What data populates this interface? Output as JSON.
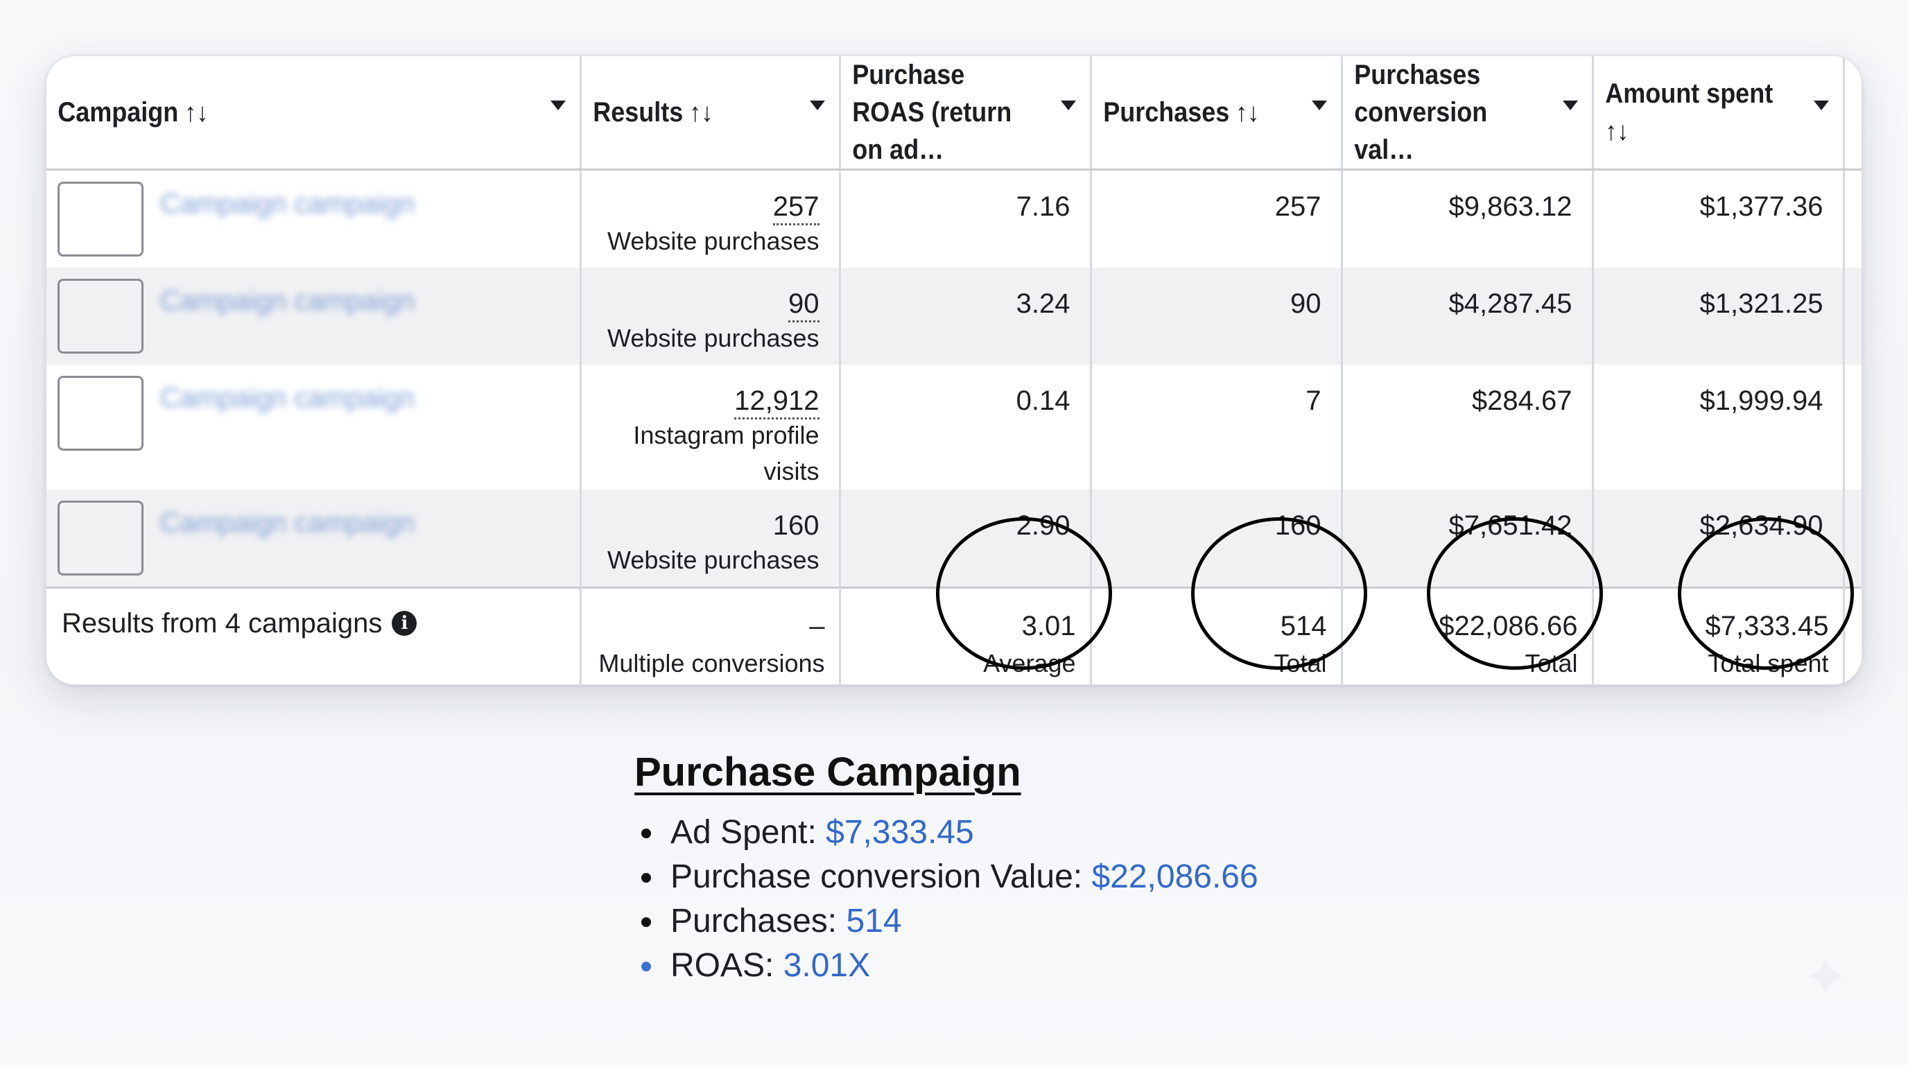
{
  "table": {
    "columns": [
      {
        "label": "Campaign",
        "sort": "↑↓"
      },
      {
        "label": "Results",
        "sort": "↑↓"
      },
      {
        "label": "Purchase ROAS (return on ad…",
        "sort": ""
      },
      {
        "label": "Purchases",
        "sort": "↑↓"
      },
      {
        "label": "Purchases conversion val…",
        "sort": ""
      },
      {
        "label": "Amount spent",
        "sort": "↑↓"
      }
    ],
    "rows": [
      {
        "campaign": "Campaign campaign",
        "results": "257",
        "results_type": "Website purchases",
        "roas": "7.16",
        "purchases": "257",
        "conv_value": "$9,863.12",
        "spent": "$1,377.36"
      },
      {
        "campaign": "Campaign campaign",
        "results": "90",
        "results_type": "Website purchases",
        "roas": "3.24",
        "purchases": "90",
        "conv_value": "$4,287.45",
        "spent": "$1,321.25"
      },
      {
        "campaign": "Campaign campaign",
        "results": "12,912",
        "results_type": "Instagram profile visits",
        "roas": "0.14",
        "purchases": "7",
        "conv_value": "$284.67",
        "spent": "$1,999.94"
      },
      {
        "campaign": "Campaign campaign",
        "results": "160",
        "results_type": "Website purchases",
        "roas": "2.90",
        "purchases": "160",
        "conv_value": "$7,651.42",
        "spent": "$2,634.90"
      }
    ],
    "totals": {
      "label": "Results from 4 campaigns",
      "info_icon": "i",
      "results": "–",
      "results_sub": "Multiple conversions",
      "roas": "3.01",
      "roas_sub": "Average",
      "purchases": "514",
      "purchases_sub": "Total",
      "conv_value": "$22,086.66",
      "conv_value_sub": "Total",
      "spent": "$7,333.45",
      "spent_sub": "Total spent"
    }
  },
  "summary": {
    "title": "Purchase Campaign",
    "items": [
      {
        "label": "Ad Spent: ",
        "value": "$7,333.45"
      },
      {
        "label": "Purchase conversion Value: ",
        "value": "$22,086.66"
      },
      {
        "label": "Purchases: ",
        "value": "514"
      },
      {
        "label": "ROAS: ",
        "value": "3.01X"
      }
    ]
  }
}
